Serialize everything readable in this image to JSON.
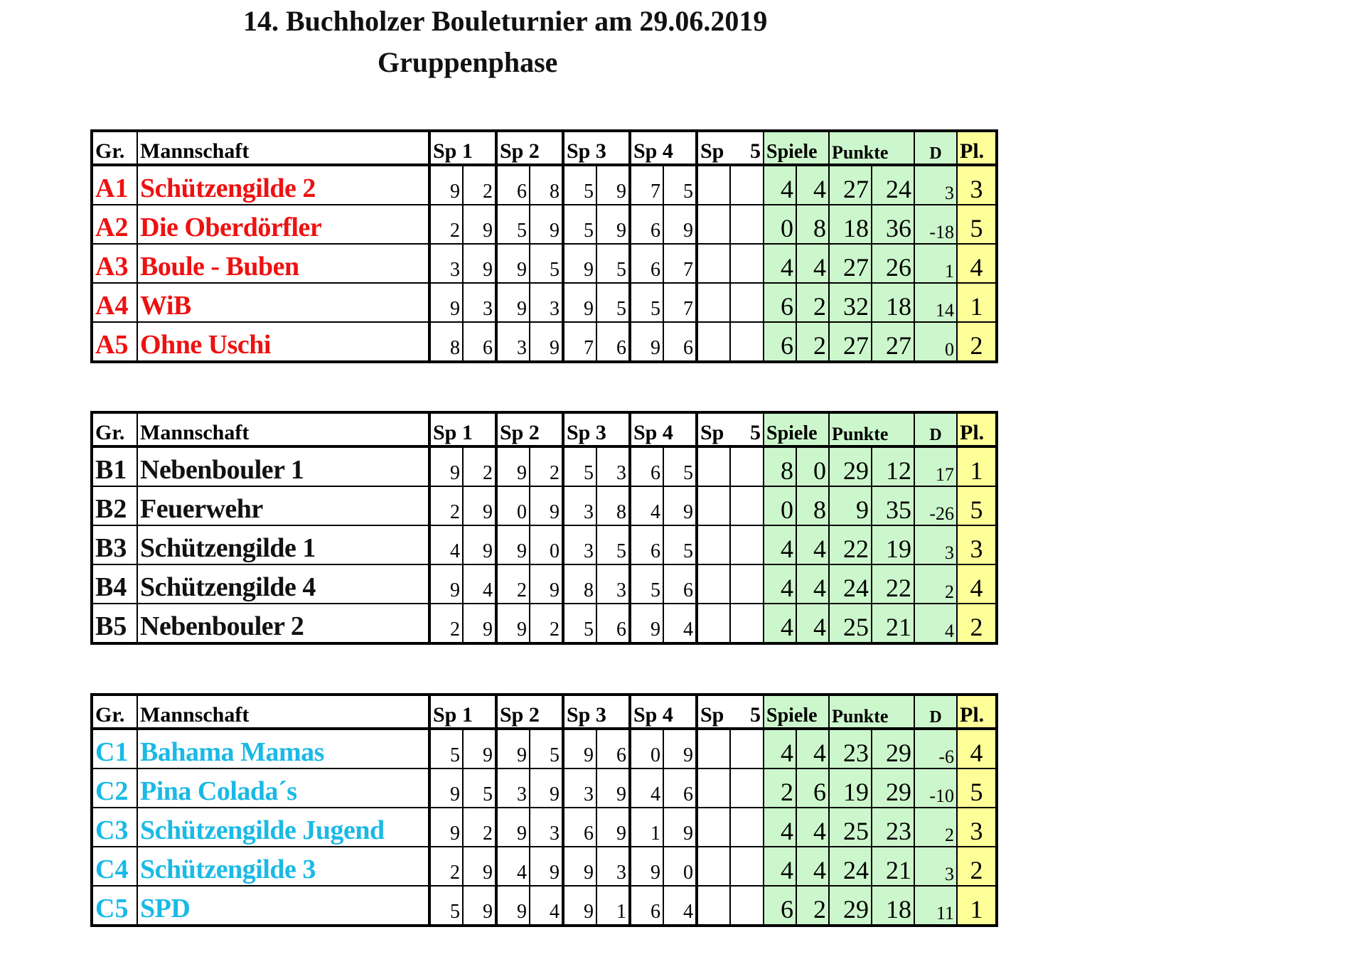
{
  "title": "14. Buchholzer Bouleturnier am 29.06.2019",
  "subtitle": "Gruppenphase",
  "colors": {
    "A": "#ee1111",
    "B": "#111111",
    "C": "#1ab9e6",
    "green": "#ccf7cc",
    "yellow": "#ffff99"
  },
  "header": {
    "gr": "Gr.",
    "team": "Mannschaft",
    "sp1": "Sp 1",
    "sp2": "Sp 2",
    "sp3": "Sp 3",
    "sp4": "Sp 4",
    "sp5a": "Sp",
    "sp5b": "5",
    "spiele": "Spiele",
    "punkte": "Punkte",
    "d": "D",
    "pl": "Pl."
  },
  "groups": [
    {
      "id": "A",
      "rows": [
        {
          "gr": "A1",
          "team": "Schützengilde 2",
          "scores": [
            9,
            2,
            6,
            8,
            5,
            9,
            7,
            5
          ],
          "spiele": [
            4,
            4
          ],
          "punkte": [
            27,
            24
          ],
          "d": "3",
          "pl": "3"
        },
        {
          "gr": "A2",
          "team": "Die Oberdörfler",
          "scores": [
            2,
            9,
            5,
            9,
            5,
            9,
            6,
            9
          ],
          "spiele": [
            0,
            8
          ],
          "punkte": [
            18,
            36
          ],
          "d": "-18",
          "pl": "5"
        },
        {
          "gr": "A3",
          "team": "Boule - Buben",
          "scores": [
            3,
            9,
            9,
            5,
            9,
            5,
            6,
            7
          ],
          "spiele": [
            4,
            4
          ],
          "punkte": [
            27,
            26
          ],
          "d": "1",
          "pl": "4"
        },
        {
          "gr": "A4",
          "team": "WiB",
          "scores": [
            9,
            3,
            9,
            3,
            9,
            5,
            5,
            7
          ],
          "spiele": [
            6,
            2
          ],
          "punkte": [
            32,
            18
          ],
          "d": "14",
          "pl": "1"
        },
        {
          "gr": "A5",
          "team": "Ohne Uschi",
          "scores": [
            8,
            6,
            3,
            9,
            7,
            6,
            9,
            6
          ],
          "spiele": [
            6,
            2
          ],
          "punkte": [
            27,
            27
          ],
          "d": "0",
          "pl": "2"
        }
      ]
    },
    {
      "id": "B",
      "rows": [
        {
          "gr": "B1",
          "team": "Nebenbouler 1",
          "scores": [
            9,
            2,
            9,
            2,
            5,
            3,
            6,
            5
          ],
          "spiele": [
            8,
            0
          ],
          "punkte": [
            29,
            12
          ],
          "d": "17",
          "pl": "1"
        },
        {
          "gr": "B2",
          "team": "Feuerwehr",
          "scores": [
            2,
            9,
            0,
            9,
            3,
            8,
            4,
            9
          ],
          "spiele": [
            0,
            8
          ],
          "punkte": [
            9,
            35
          ],
          "d": "-26",
          "pl": "5"
        },
        {
          "gr": "B3",
          "team": "Schützengilde 1",
          "scores": [
            4,
            9,
            9,
            0,
            3,
            5,
            6,
            5
          ],
          "spiele": [
            4,
            4
          ],
          "punkte": [
            22,
            19
          ],
          "d": "3",
          "pl": "3"
        },
        {
          "gr": "B4",
          "team": "Schützengilde 4",
          "scores": [
            9,
            4,
            2,
            9,
            8,
            3,
            5,
            6
          ],
          "spiele": [
            4,
            4
          ],
          "punkte": [
            24,
            22
          ],
          "d": "2",
          "pl": "4"
        },
        {
          "gr": "B5",
          "team": "Nebenbouler 2",
          "scores": [
            2,
            9,
            9,
            2,
            5,
            6,
            9,
            4
          ],
          "spiele": [
            4,
            4
          ],
          "punkte": [
            25,
            21
          ],
          "d": "4",
          "pl": "2"
        }
      ]
    },
    {
      "id": "C",
      "rows": [
        {
          "gr": "C1",
          "team": "Bahama Mamas",
          "scores": [
            5,
            9,
            9,
            5,
            9,
            6,
            0,
            9
          ],
          "spiele": [
            4,
            4
          ],
          "punkte": [
            23,
            29
          ],
          "d": "-6",
          "pl": "4"
        },
        {
          "gr": "C2",
          "team": "Pina Colada´s",
          "scores": [
            9,
            5,
            3,
            9,
            3,
            9,
            4,
            6
          ],
          "spiele": [
            2,
            6
          ],
          "punkte": [
            19,
            29
          ],
          "d": "-10",
          "pl": "5"
        },
        {
          "gr": "C3",
          "team": "Schützengilde Jugend",
          "scores": [
            9,
            2,
            9,
            3,
            6,
            9,
            1,
            9
          ],
          "spiele": [
            4,
            4
          ],
          "punkte": [
            25,
            23
          ],
          "d": "2",
          "pl": "3"
        },
        {
          "gr": "C4",
          "team": "Schützengilde 3",
          "scores": [
            2,
            9,
            4,
            9,
            9,
            3,
            9,
            0
          ],
          "spiele": [
            4,
            4
          ],
          "punkte": [
            24,
            21
          ],
          "d": "3",
          "pl": "2"
        },
        {
          "gr": "C5",
          "team": "SPD",
          "scores": [
            5,
            9,
            9,
            4,
            9,
            1,
            6,
            4
          ],
          "spiele": [
            6,
            2
          ],
          "punkte": [
            29,
            18
          ],
          "d": "11",
          "pl": "1"
        }
      ]
    }
  ]
}
